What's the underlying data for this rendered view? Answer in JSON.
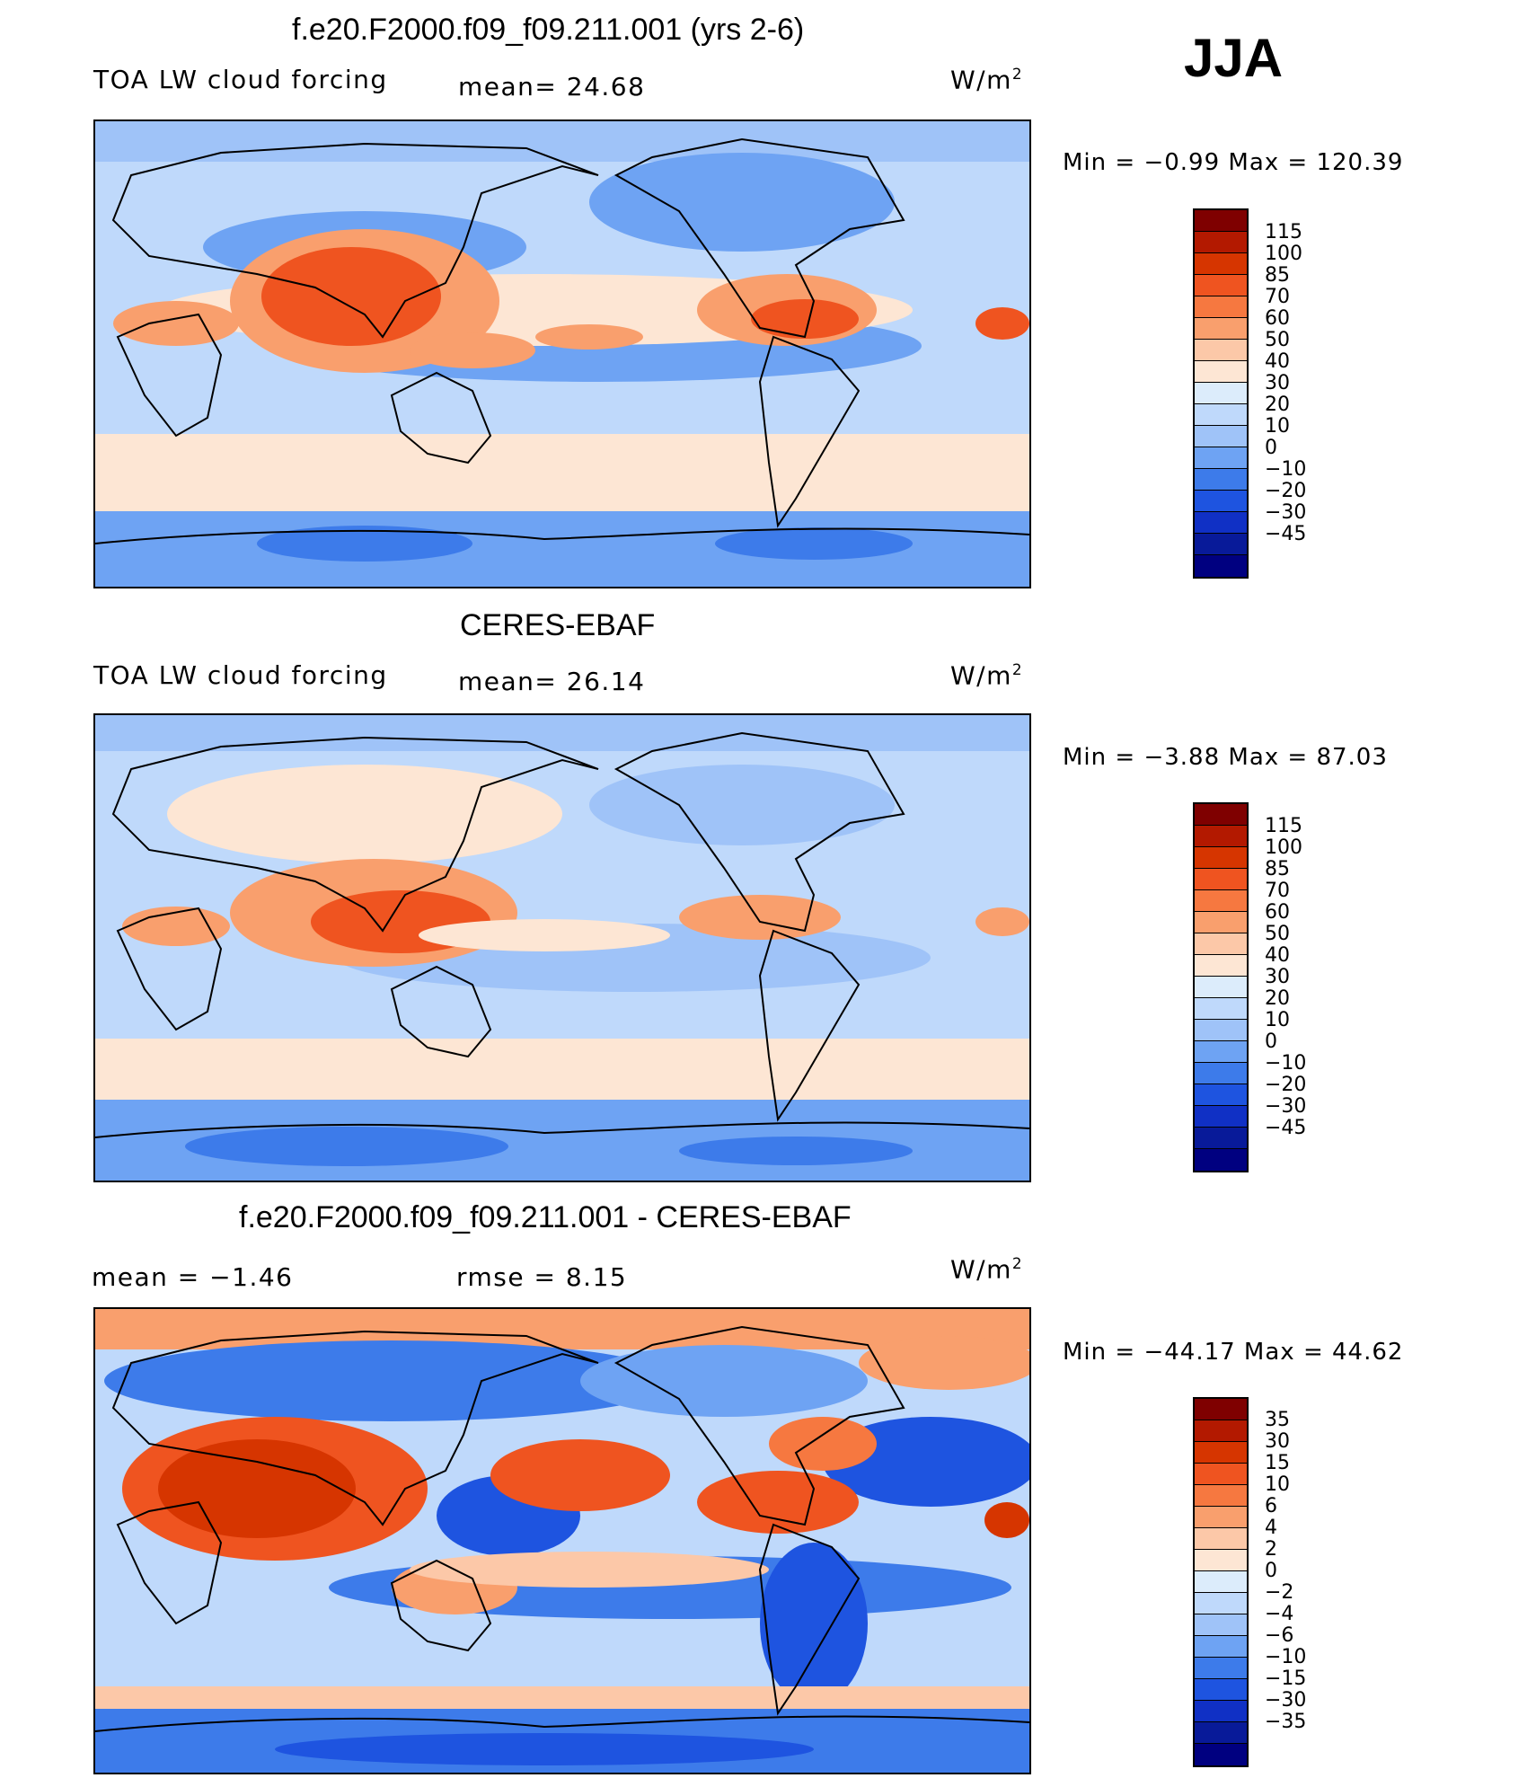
{
  "season": "JJA",
  "panels": [
    {
      "id": "model",
      "title": "f.e20.F2000.f09_f09.211.001 (yrs 2-6)",
      "left_label": "TOA LW cloud forcing",
      "center_label": "mean=  24.68",
      "units": "W/m",
      "units_sup": "2",
      "minmax": "Min  =   −0.99  Max  =  120.39",
      "colorbar": {
        "labels": [
          "115",
          "100",
          "85",
          "70",
          "60",
          "50",
          "40",
          "30",
          "20",
          "10",
          "0",
          "−10",
          "−20",
          "−30",
          "−45"
        ],
        "colors": [
          "#7f0000",
          "#b31900",
          "#d63500",
          "#ef5420",
          "#f67840",
          "#f99f6d",
          "#fcc8a8",
          "#fde6d4",
          "#dcecfb",
          "#bfd9fb",
          "#9fc3f8",
          "#6ea3f3",
          "#3d7bea",
          "#1e54e0",
          "#1030c5",
          "#081a99",
          "#000080"
        ]
      }
    },
    {
      "id": "obs",
      "title": "CERES-EBAF",
      "left_label": "TOA LW cloud forcing",
      "center_label": "mean=  26.14",
      "units": "W/m",
      "units_sup": "2",
      "minmax": "Min  =   −3.88  Max  =   87.03",
      "colorbar": {
        "labels": [
          "115",
          "100",
          "85",
          "70",
          "60",
          "50",
          "40",
          "30",
          "20",
          "10",
          "0",
          "−10",
          "−20",
          "−30",
          "−45"
        ],
        "colors": [
          "#7f0000",
          "#b31900",
          "#d63500",
          "#ef5420",
          "#f67840",
          "#f99f6d",
          "#fcc8a8",
          "#fde6d4",
          "#dcecfb",
          "#bfd9fb",
          "#9fc3f8",
          "#6ea3f3",
          "#3d7bea",
          "#1e54e0",
          "#1030c5",
          "#081a99",
          "#000080"
        ]
      }
    },
    {
      "id": "diff",
      "title": "f.e20.F2000.f09_f09.211.001 - CERES-EBAF",
      "left_label": "mean  =   −1.46",
      "center_label": "rmse  =    8.15",
      "units": "W/m",
      "units_sup": "2",
      "minmax": "Min  = −44.17  Max  =   44.62",
      "colorbar": {
        "labels": [
          "35",
          "30",
          "15",
          "10",
          "6",
          "4",
          "2",
          "0",
          "−2",
          "−4",
          "−6",
          "−10",
          "−15",
          "−30",
          "−35"
        ],
        "colors": [
          "#7f0000",
          "#b31900",
          "#d63500",
          "#ef5420",
          "#f67840",
          "#f99f6d",
          "#fcc8a8",
          "#fde6d4",
          "#dcecfb",
          "#bfd9fb",
          "#9fc3f8",
          "#6ea3f3",
          "#3d7bea",
          "#1e54e0",
          "#1030c5",
          "#081a99",
          "#000080"
        ]
      }
    }
  ],
  "chart_data": [
    {
      "type": "heatmap",
      "title": "f.e20.F2000.f09_f09.211.001 (yrs 2-6)",
      "variable": "TOA LW cloud forcing",
      "units": "W/m2",
      "mean": 24.68,
      "min": -0.99,
      "max": 120.39,
      "levels": [
        -45,
        -30,
        -20,
        -10,
        0,
        10,
        20,
        30,
        40,
        50,
        60,
        70,
        85,
        100,
        115
      ],
      "grid": false
    },
    {
      "type": "heatmap",
      "title": "CERES-EBAF",
      "variable": "TOA LW cloud forcing",
      "units": "W/m2",
      "mean": 26.14,
      "min": -3.88,
      "max": 87.03,
      "levels": [
        -45,
        -30,
        -20,
        -10,
        0,
        10,
        20,
        30,
        40,
        50,
        60,
        70,
        85,
        100,
        115
      ],
      "grid": false
    },
    {
      "type": "heatmap",
      "title": "f.e20.F2000.f09_f09.211.001 - CERES-EBAF",
      "units": "W/m2",
      "mean": -1.46,
      "rmse": 8.15,
      "min": -44.17,
      "max": 44.62,
      "levels": [
        -35,
        -30,
        -15,
        -10,
        -6,
        -4,
        -2,
        0,
        2,
        4,
        6,
        10,
        15,
        30,
        35
      ],
      "grid": false
    }
  ]
}
